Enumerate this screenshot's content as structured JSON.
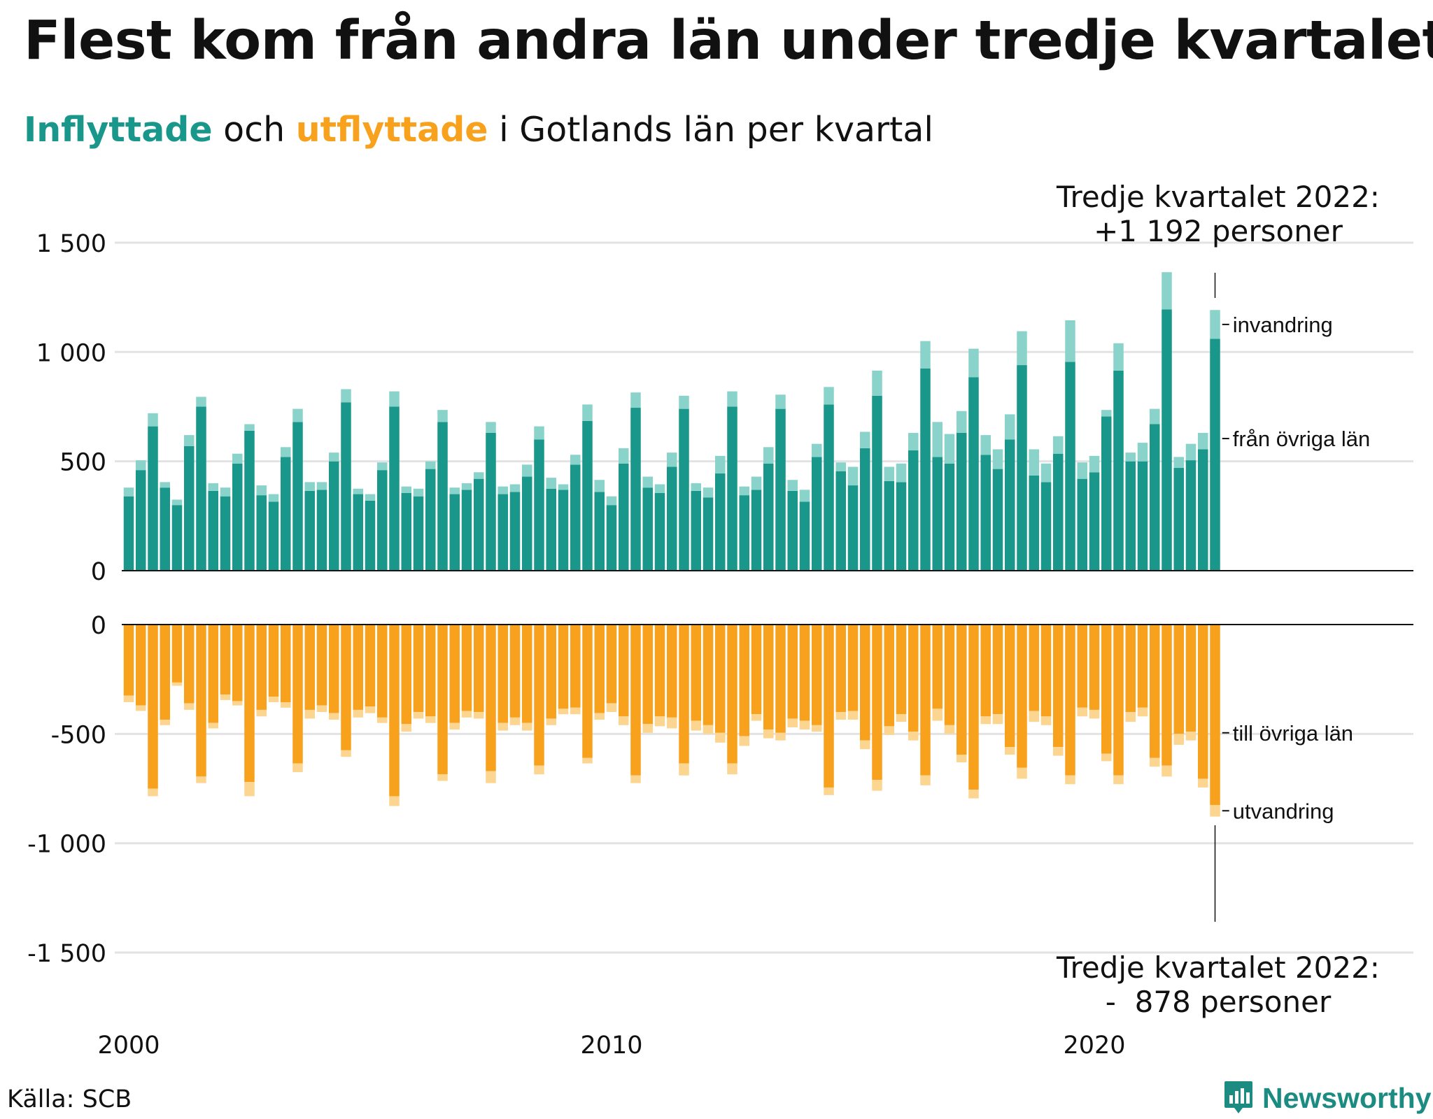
{
  "title": "Flest kom från andra län under tredje kvartalet",
  "subtitle": {
    "in_label": "Inflyttade",
    "mid": " och ",
    "out_label": "utflyttade",
    "rest": " i Gotlands län per kvartal"
  },
  "source": "Källa: SCB",
  "brand": "Newsworthy",
  "colors": {
    "in_domestic": "#19978a",
    "in_immigration": "#8ad3cb",
    "out_domestic": "#f7a11d",
    "out_emigration": "#fcd690",
    "grid": "#e3e3e3",
    "axis": "#111111"
  },
  "chart_data": [
    {
      "type": "bar",
      "stacked": true,
      "x_start": "2000 Q1",
      "x_ticks": [
        "2000",
        "2010",
        "2020"
      ],
      "y_ticks": [
        "0",
        "500",
        "1 000",
        "1 500"
      ],
      "ylim": [
        0,
        1600
      ],
      "grid": true,
      "annotation": {
        "line1": "Tredje kvartalet 2022:",
        "line2": "+1 192 personer"
      },
      "series": [
        {
          "name": "från övriga län",
          "values": [
            340,
            460,
            660,
            380,
            300,
            570,
            750,
            365,
            340,
            490,
            640,
            345,
            315,
            520,
            680,
            365,
            370,
            500,
            770,
            350,
            320,
            460,
            750,
            355,
            340,
            465,
            680,
            350,
            370,
            420,
            630,
            350,
            360,
            430,
            600,
            375,
            370,
            485,
            685,
            360,
            300,
            490,
            745,
            380,
            355,
            475,
            740,
            365,
            335,
            445,
            750,
            345,
            370,
            490,
            740,
            365,
            315,
            520,
            760,
            455,
            390,
            560,
            800,
            410,
            405,
            550,
            925,
            520,
            490,
            630,
            885,
            530,
            465,
            600,
            940,
            435,
            405,
            535,
            955,
            420,
            450,
            705,
            915,
            500,
            500,
            670,
            1195,
            470,
            505,
            555,
            1060
          ]
        },
        {
          "name": "invandring",
          "values": [
            40,
            45,
            60,
            25,
            25,
            50,
            45,
            35,
            40,
            45,
            30,
            45,
            35,
            45,
            60,
            40,
            35,
            40,
            60,
            25,
            30,
            35,
            70,
            30,
            35,
            35,
            55,
            30,
            30,
            30,
            50,
            35,
            35,
            55,
            60,
            50,
            25,
            45,
            75,
            55,
            40,
            70,
            70,
            50,
            40,
            65,
            60,
            35,
            45,
            80,
            70,
            40,
            60,
            75,
            65,
            50,
            55,
            60,
            80,
            40,
            85,
            75,
            115,
            65,
            85,
            80,
            125,
            160,
            135,
            100,
            130,
            90,
            90,
            115,
            155,
            120,
            85,
            80,
            190,
            75,
            75,
            30,
            125,
            40,
            85,
            70,
            170,
            50,
            75,
            75,
            132
          ]
        }
      ]
    },
    {
      "type": "bar",
      "stacked": true,
      "x_start": "2000 Q1",
      "x_ticks": [
        "2000",
        "2010",
        "2020"
      ],
      "y_ticks": [
        "0",
        "-500",
        "-1 000",
        "-1 500"
      ],
      "ylim": [
        -1600,
        0
      ],
      "grid": true,
      "annotation": {
        "line1": "Tredje kvartalet 2022:",
        "line2": "-  878 personer"
      },
      "series": [
        {
          "name": "till övriga län",
          "values": [
            -325,
            -370,
            -750,
            -435,
            -265,
            -360,
            -695,
            -450,
            -320,
            -350,
            -720,
            -390,
            -330,
            -355,
            -635,
            -390,
            -370,
            -405,
            -575,
            -390,
            -375,
            -425,
            -785,
            -455,
            -400,
            -420,
            -685,
            -450,
            -395,
            -400,
            -670,
            -450,
            -425,
            -450,
            -645,
            -430,
            -385,
            -380,
            -610,
            -405,
            -360,
            -420,
            -690,
            -455,
            -420,
            -425,
            -635,
            -440,
            -460,
            -495,
            -635,
            -510,
            -410,
            -480,
            -495,
            -430,
            -440,
            -460,
            -745,
            -400,
            -395,
            -530,
            -710,
            -465,
            -410,
            -490,
            -690,
            -385,
            -460,
            -595,
            -755,
            -420,
            -410,
            -560,
            -655,
            -395,
            -420,
            -560,
            -690,
            -380,
            -390,
            -590,
            -690,
            -400,
            -380,
            -610,
            -645,
            -500,
            -490,
            -705,
            -825
          ]
        },
        {
          "name": "utvandring",
          "values": [
            -30,
            -25,
            -35,
            -25,
            -15,
            -30,
            -30,
            -25,
            -25,
            -20,
            -65,
            -30,
            -25,
            -25,
            -40,
            -40,
            -30,
            -30,
            -30,
            -35,
            -30,
            -25,
            -45,
            -35,
            -30,
            -30,
            -30,
            -30,
            -30,
            -30,
            -55,
            -35,
            -35,
            -35,
            -40,
            -30,
            -25,
            -30,
            -25,
            -30,
            -40,
            -40,
            -35,
            -40,
            -45,
            -50,
            -55,
            -45,
            -40,
            -45,
            -50,
            -45,
            -30,
            -40,
            -35,
            -40,
            -40,
            -30,
            -35,
            -35,
            -40,
            -40,
            -50,
            -40,
            -35,
            -40,
            -45,
            -55,
            -40,
            -35,
            -40,
            -35,
            -45,
            -35,
            -50,
            -50,
            -40,
            -40,
            -40,
            -40,
            -40,
            -35,
            -40,
            -45,
            -40,
            -40,
            -50,
            -50,
            -40,
            -40,
            -53
          ]
        }
      ]
    }
  ]
}
